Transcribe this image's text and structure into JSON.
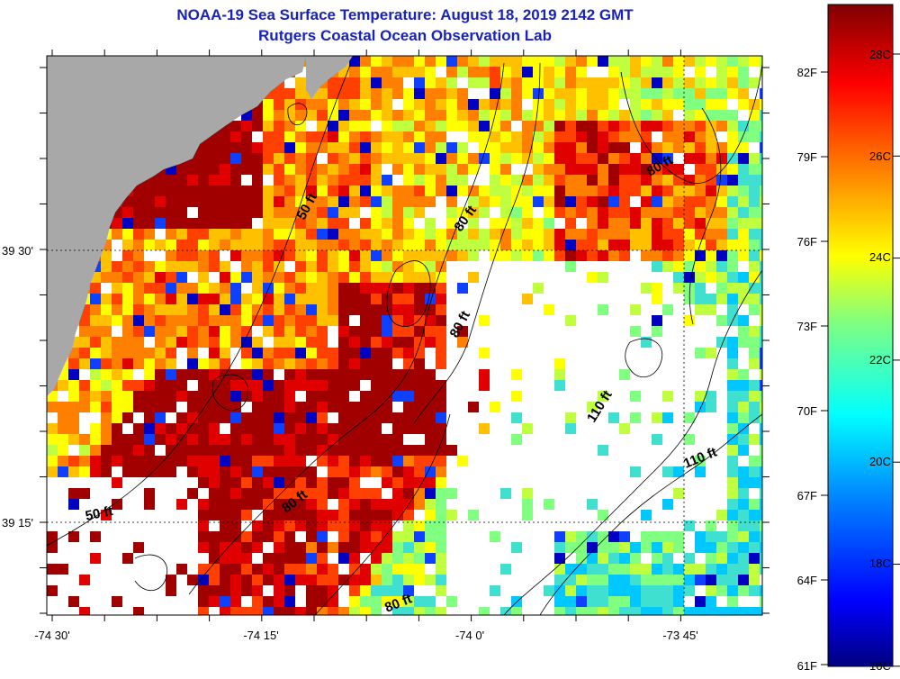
{
  "title": {
    "line1": "NOAA-19 Sea Surface Temperature:  August 18, 2019 2142 GMT",
    "line2": "Rutgers Coastal Ocean Observation Lab"
  },
  "map": {
    "lon_labels": [
      "-74 30'",
      "-74 15'",
      "-74 0'",
      "-73 45'"
    ],
    "lat_labels": [
      "39 30'",
      "39 15'"
    ],
    "depth_labels": [
      "50 ft",
      "80 ft",
      "80 ft",
      "80 ft",
      "110 ft",
      "110 ft",
      "50 ft",
      "80 ft",
      "80 ft"
    ]
  },
  "colorbar": {
    "fahrenheit_labels": [
      "82F",
      "79F",
      "76F",
      "73F",
      "70F",
      "67F",
      "64F",
      "61F"
    ],
    "celsius_labels": [
      "28C",
      "26C",
      "24C",
      "22C",
      "20C",
      "18C",
      "16C"
    ],
    "colors": [
      "#000080",
      "#0000ff",
      "#0080ff",
      "#00ffff",
      "#80ff80",
      "#ffff00",
      "#ff8000",
      "#ff0000",
      "#800000"
    ]
  },
  "colors": {
    "title": "#1a23b8",
    "land": "#a8a8a8",
    "no_data": "#ffffff"
  }
}
